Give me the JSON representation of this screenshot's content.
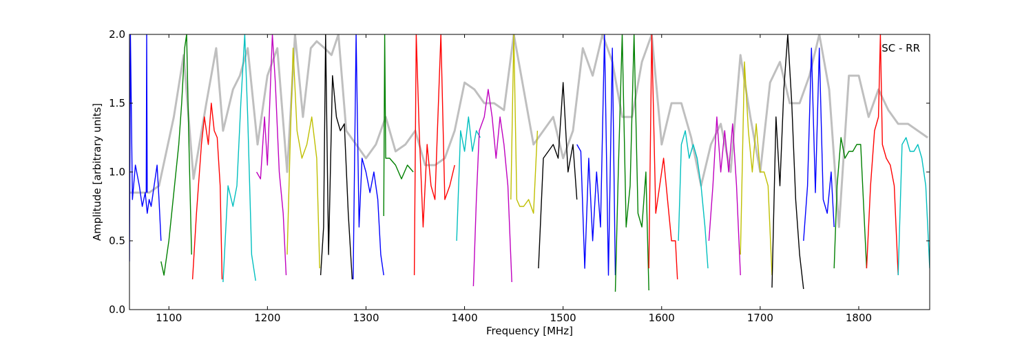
{
  "chart_data": {
    "type": "line",
    "title": "",
    "annotation": "SC - RR",
    "xlabel": "Frequency [MHz]",
    "ylabel": "Amplitude [arbitrary units]",
    "xlim": [
      1060,
      1872
    ],
    "ylim": [
      0.0,
      2.0
    ],
    "x_ticks": [
      1100,
      1200,
      1300,
      1400,
      1500,
      1600,
      1700,
      1800
    ],
    "x_tick_labels": [
      "1100",
      "1200",
      "1300",
      "1400",
      "1500",
      "1600",
      "1700",
      "1800"
    ],
    "y_ticks": [
      0.0,
      0.5,
      1.0,
      1.5,
      2.0
    ],
    "y_tick_labels": [
      "0.0",
      "0.5",
      "1.0",
      "1.5",
      "2.0"
    ],
    "grid": false,
    "legend": "none",
    "background_series": {
      "color": "#bfbfbf",
      "x": [
        1060,
        1080,
        1090,
        1105,
        1115,
        1125,
        1138,
        1148,
        1155,
        1165,
        1172,
        1180,
        1190,
        1200,
        1210,
        1220,
        1228,
        1236,
        1244,
        1250,
        1258,
        1265,
        1272,
        1280,
        1290,
        1300,
        1310,
        1320,
        1330,
        1340,
        1350,
        1360,
        1370,
        1380,
        1390,
        1400,
        1410,
        1420,
        1430,
        1440,
        1450,
        1460,
        1470,
        1480,
        1490,
        1500,
        1510,
        1520,
        1530,
        1540,
        1550,
        1560,
        1570,
        1580,
        1590,
        1600,
        1610,
        1620,
        1630,
        1640,
        1650,
        1660,
        1670,
        1680,
        1690,
        1700,
        1710,
        1720,
        1730,
        1740,
        1750,
        1760,
        1770,
        1780,
        1790,
        1800,
        1810,
        1820,
        1830,
        1840,
        1850,
        1860,
        1870
      ],
      "y": [
        0.85,
        0.85,
        0.9,
        1.4,
        1.85,
        0.95,
        1.5,
        1.9,
        1.3,
        1.6,
        1.7,
        1.9,
        1.2,
        1.7,
        1.9,
        1.0,
        2.0,
        1.4,
        1.9,
        1.95,
        1.9,
        1.85,
        2.0,
        1.3,
        1.2,
        1.1,
        1.2,
        1.4,
        1.15,
        1.2,
        1.3,
        1.05,
        1.05,
        1.1,
        1.3,
        1.65,
        1.6,
        1.5,
        1.5,
        1.45,
        2.0,
        1.6,
        1.2,
        1.3,
        1.4,
        1.1,
        1.3,
        1.9,
        1.7,
        2.0,
        1.8,
        1.4,
        1.4,
        1.8,
        2.0,
        1.2,
        1.5,
        1.5,
        1.25,
        0.9,
        1.2,
        1.35,
        1.0,
        1.85,
        1.4,
        1.0,
        1.65,
        1.8,
        1.5,
        1.5,
        1.7,
        2.0,
        1.6,
        0.6,
        1.7,
        1.7,
        1.4,
        1.6,
        1.45,
        1.35,
        1.35,
        1.3,
        1.25
      ]
    },
    "series": [
      {
        "color": "#0000ff",
        "x": [
          1060,
          1061,
          1063,
          1066,
          1070,
          1073,
          1076,
          1078,
          1080,
          1082,
          1085,
          1088,
          1090,
          1092
        ],
        "y": [
          0.35,
          2.0,
          0.8,
          1.05,
          0.9,
          0.75,
          0.85,
          0.7,
          0.8,
          0.75,
          0.9,
          1.05,
          0.8,
          0.5
        ]
      },
      {
        "color": "#0000ff",
        "x": [
          1077,
          1077.5,
          1078
        ],
        "y": [
          0.85,
          2.0,
          0.85
        ]
      },
      {
        "color": "#008000",
        "x": [
          1092,
          1095,
          1100,
          1105,
          1110,
          1113,
          1116,
          1118,
          1120,
          1123
        ],
        "y": [
          0.35,
          0.25,
          0.5,
          0.85,
          1.2,
          1.5,
          1.9,
          2.0,
          1.3,
          0.4
        ]
      },
      {
        "color": "#ff0000",
        "x": [
          1124,
          1128,
          1133,
          1136,
          1140,
          1143,
          1146,
          1149,
          1152,
          1154
        ],
        "y": [
          0.22,
          0.7,
          1.2,
          1.4,
          1.2,
          1.5,
          1.3,
          1.25,
          0.9,
          0.22
        ]
      },
      {
        "color": "#00bfbf",
        "x": [
          1155,
          1160,
          1165,
          1169,
          1173,
          1177,
          1180,
          1184,
          1188
        ],
        "y": [
          0.2,
          0.9,
          0.75,
          0.9,
          1.5,
          2.0,
          1.4,
          0.4,
          0.21
        ]
      },
      {
        "color": "#bf00bf",
        "x": [
          1189,
          1193,
          1197,
          1200,
          1205,
          1208,
          1212,
          1216,
          1219
        ],
        "y": [
          1.0,
          0.95,
          1.4,
          1.05,
          2.0,
          1.65,
          1.0,
          0.7,
          0.25
        ]
      },
      {
        "color": "#bfbf00",
        "x": [
          1220,
          1223,
          1226,
          1230,
          1235,
          1240,
          1245,
          1250,
          1253
        ],
        "y": [
          0.4,
          1.2,
          1.9,
          1.3,
          1.1,
          1.2,
          1.4,
          1.1,
          0.3
        ]
      },
      {
        "color": "#000000",
        "x": [
          1254,
          1257,
          1259,
          1262,
          1266,
          1270,
          1274,
          1278,
          1282,
          1286
        ],
        "y": [
          0.25,
          0.6,
          2.0,
          0.4,
          1.7,
          1.4,
          1.3,
          1.35,
          0.7,
          0.22
        ]
      },
      {
        "color": "#0000ff",
        "x": [
          1287,
          1290,
          1293,
          1296,
          1300,
          1304,
          1308,
          1312,
          1315,
          1318
        ],
        "y": [
          0.22,
          2.0,
          0.6,
          1.1,
          1.0,
          0.85,
          1.0,
          0.8,
          0.4,
          0.25
        ]
      },
      {
        "color": "#008000",
        "x": [
          1318,
          1319,
          1320,
          1324,
          1330,
          1336,
          1342,
          1348
        ],
        "y": [
          0.68,
          2.0,
          1.1,
          1.1,
          1.05,
          0.95,
          1.05,
          1.0
        ]
      },
      {
        "color": "#ff0000",
        "x": [
          1349,
          1351,
          1354,
          1358,
          1362,
          1366,
          1370,
          1376,
          1380,
          1385,
          1390
        ],
        "y": [
          0.25,
          2.0,
          1.3,
          0.6,
          1.2,
          0.9,
          0.8,
          2.0,
          0.8,
          0.9,
          1.05
        ]
      },
      {
        "color": "#00bfbf",
        "x": [
          1392,
          1396,
          1400,
          1404,
          1408,
          1412,
          1416
        ],
        "y": [
          0.5,
          1.3,
          1.15,
          1.4,
          1.15,
          1.3,
          1.25
        ]
      },
      {
        "color": "#bf00bf",
        "x": [
          1409,
          1412,
          1415,
          1420,
          1424,
          1428,
          1432,
          1436,
          1440,
          1444,
          1448
        ],
        "y": [
          0.17,
          0.8,
          1.3,
          1.4,
          1.6,
          1.4,
          1.1,
          1.4,
          1.2,
          0.9,
          0.2
        ]
      },
      {
        "color": "#bfbf00",
        "x": [
          1447,
          1450,
          1453,
          1456,
          1460,
          1465,
          1470,
          1474
        ],
        "y": [
          0.8,
          2.0,
          0.8,
          0.75,
          0.75,
          0.8,
          0.7,
          1.3
        ]
      },
      {
        "color": "#000000",
        "x": [
          1475,
          1480,
          1485,
          1490,
          1495,
          1500,
          1505,
          1510,
          1514
        ],
        "y": [
          0.3,
          1.1,
          1.15,
          1.2,
          1.1,
          1.65,
          1.0,
          1.2,
          0.8
        ]
      },
      {
        "color": "#0000ff",
        "x": [
          1514,
          1518,
          1522,
          1526,
          1530,
          1534,
          1538,
          1542,
          1546,
          1550,
          1553
        ],
        "y": [
          1.2,
          1.15,
          0.3,
          1.1,
          0.5,
          1.0,
          0.6,
          2.0,
          0.25,
          1.9,
          0.25
        ]
      },
      {
        "color": "#008000",
        "x": [
          1553,
          1556,
          1560,
          1564,
          1568,
          1572,
          1576,
          1580,
          1584,
          1587
        ],
        "y": [
          0.13,
          1.0,
          2.0,
          0.6,
          0.9,
          2.0,
          0.7,
          0.6,
          1.0,
          0.14
        ]
      },
      {
        "color": "#ff0000",
        "x": [
          1587,
          1590,
          1594,
          1598,
          1602,
          1606,
          1610,
          1614,
          1616
        ],
        "y": [
          0.3,
          2.0,
          0.7,
          0.9,
          1.1,
          0.8,
          0.5,
          0.5,
          0.22
        ]
      },
      {
        "color": "#00bfbf",
        "x": [
          1617,
          1620,
          1624,
          1628,
          1632,
          1636,
          1640,
          1644,
          1647
        ],
        "y": [
          0.5,
          1.2,
          1.3,
          1.1,
          1.2,
          1.1,
          0.9,
          0.6,
          0.3
        ]
      },
      {
        "color": "#bf00bf",
        "x": [
          1648,
          1652,
          1656,
          1660,
          1664,
          1668,
          1672,
          1676,
          1680
        ],
        "y": [
          0.5,
          0.9,
          1.4,
          1.0,
          1.3,
          1.0,
          1.35,
          0.9,
          0.25
        ]
      },
      {
        "color": "#bfbf00",
        "x": [
          1680,
          1684,
          1688,
          1692,
          1696,
          1700,
          1704,
          1708,
          1712
        ],
        "y": [
          0.4,
          1.8,
          1.3,
          1.0,
          1.35,
          1.0,
          1.0,
          0.9,
          0.25
        ]
      },
      {
        "color": "#000000",
        "x": [
          1712,
          1716,
          1720,
          1724,
          1728,
          1732,
          1736,
          1740,
          1744
        ],
        "y": [
          0.16,
          1.4,
          0.9,
          1.6,
          2.0,
          1.5,
          0.8,
          0.4,
          0.15
        ]
      },
      {
        "color": "#0000ff",
        "x": [
          1744,
          1748,
          1752,
          1756,
          1760,
          1764,
          1768,
          1772,
          1775
        ],
        "y": [
          0.5,
          0.9,
          1.9,
          0.85,
          1.9,
          0.8,
          0.7,
          1.0,
          0.6
        ]
      },
      {
        "color": "#008000",
        "x": [
          1775,
          1778,
          1782,
          1786,
          1790,
          1794,
          1798,
          1802,
          1808
        ],
        "y": [
          0.3,
          0.9,
          1.25,
          1.1,
          1.15,
          1.15,
          1.2,
          1.2,
          0.3
        ]
      },
      {
        "color": "#ff0000",
        "x": [
          1808,
          1812,
          1816,
          1820,
          1822,
          1824,
          1828,
          1832,
          1836,
          1840
        ],
        "y": [
          0.3,
          0.9,
          1.3,
          1.4,
          2.0,
          1.2,
          1.1,
          1.05,
          0.9,
          0.25
        ]
      },
      {
        "color": "#00bfbf",
        "x": [
          1840,
          1844,
          1848,
          1852,
          1856,
          1860,
          1864,
          1868,
          1872
        ],
        "y": [
          0.25,
          1.2,
          1.25,
          1.15,
          1.15,
          1.2,
          1.1,
          0.9,
          0.3
        ]
      }
    ]
  }
}
